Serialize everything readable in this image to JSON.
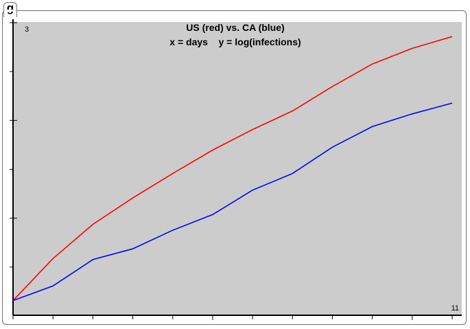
{
  "panel": {
    "tab_label": "g"
  },
  "chart_data": {
    "type": "line",
    "title_line1": "US (red) vs. CA (blue)",
    "title_line2": "x = days    y = log(infections)",
    "x_max_label": "11",
    "y_max_label": "3",
    "xlim": [
      1,
      11
    ],
    "ylim": [
      0,
      3
    ],
    "grid": false,
    "series": [
      {
        "color": "#ff0000",
        "x": [
          1,
          2,
          3,
          4,
          5,
          6,
          7,
          8,
          9,
          10,
          11,
          12
        ],
        "y": [
          0.15,
          0.58,
          0.93,
          1.2,
          1.45,
          1.69,
          1.9,
          2.09,
          2.34,
          2.57,
          2.73,
          2.85
        ]
      },
      {
        "color": "#0000ff",
        "x": [
          1,
          2,
          3,
          4,
          5,
          6,
          7,
          8,
          9,
          10,
          11,
          12
        ],
        "y": [
          0.15,
          0.3,
          0.57,
          0.68,
          0.87,
          1.03,
          1.28,
          1.45,
          1.72,
          1.93,
          2.06,
          2.17
        ]
      }
    ]
  }
}
